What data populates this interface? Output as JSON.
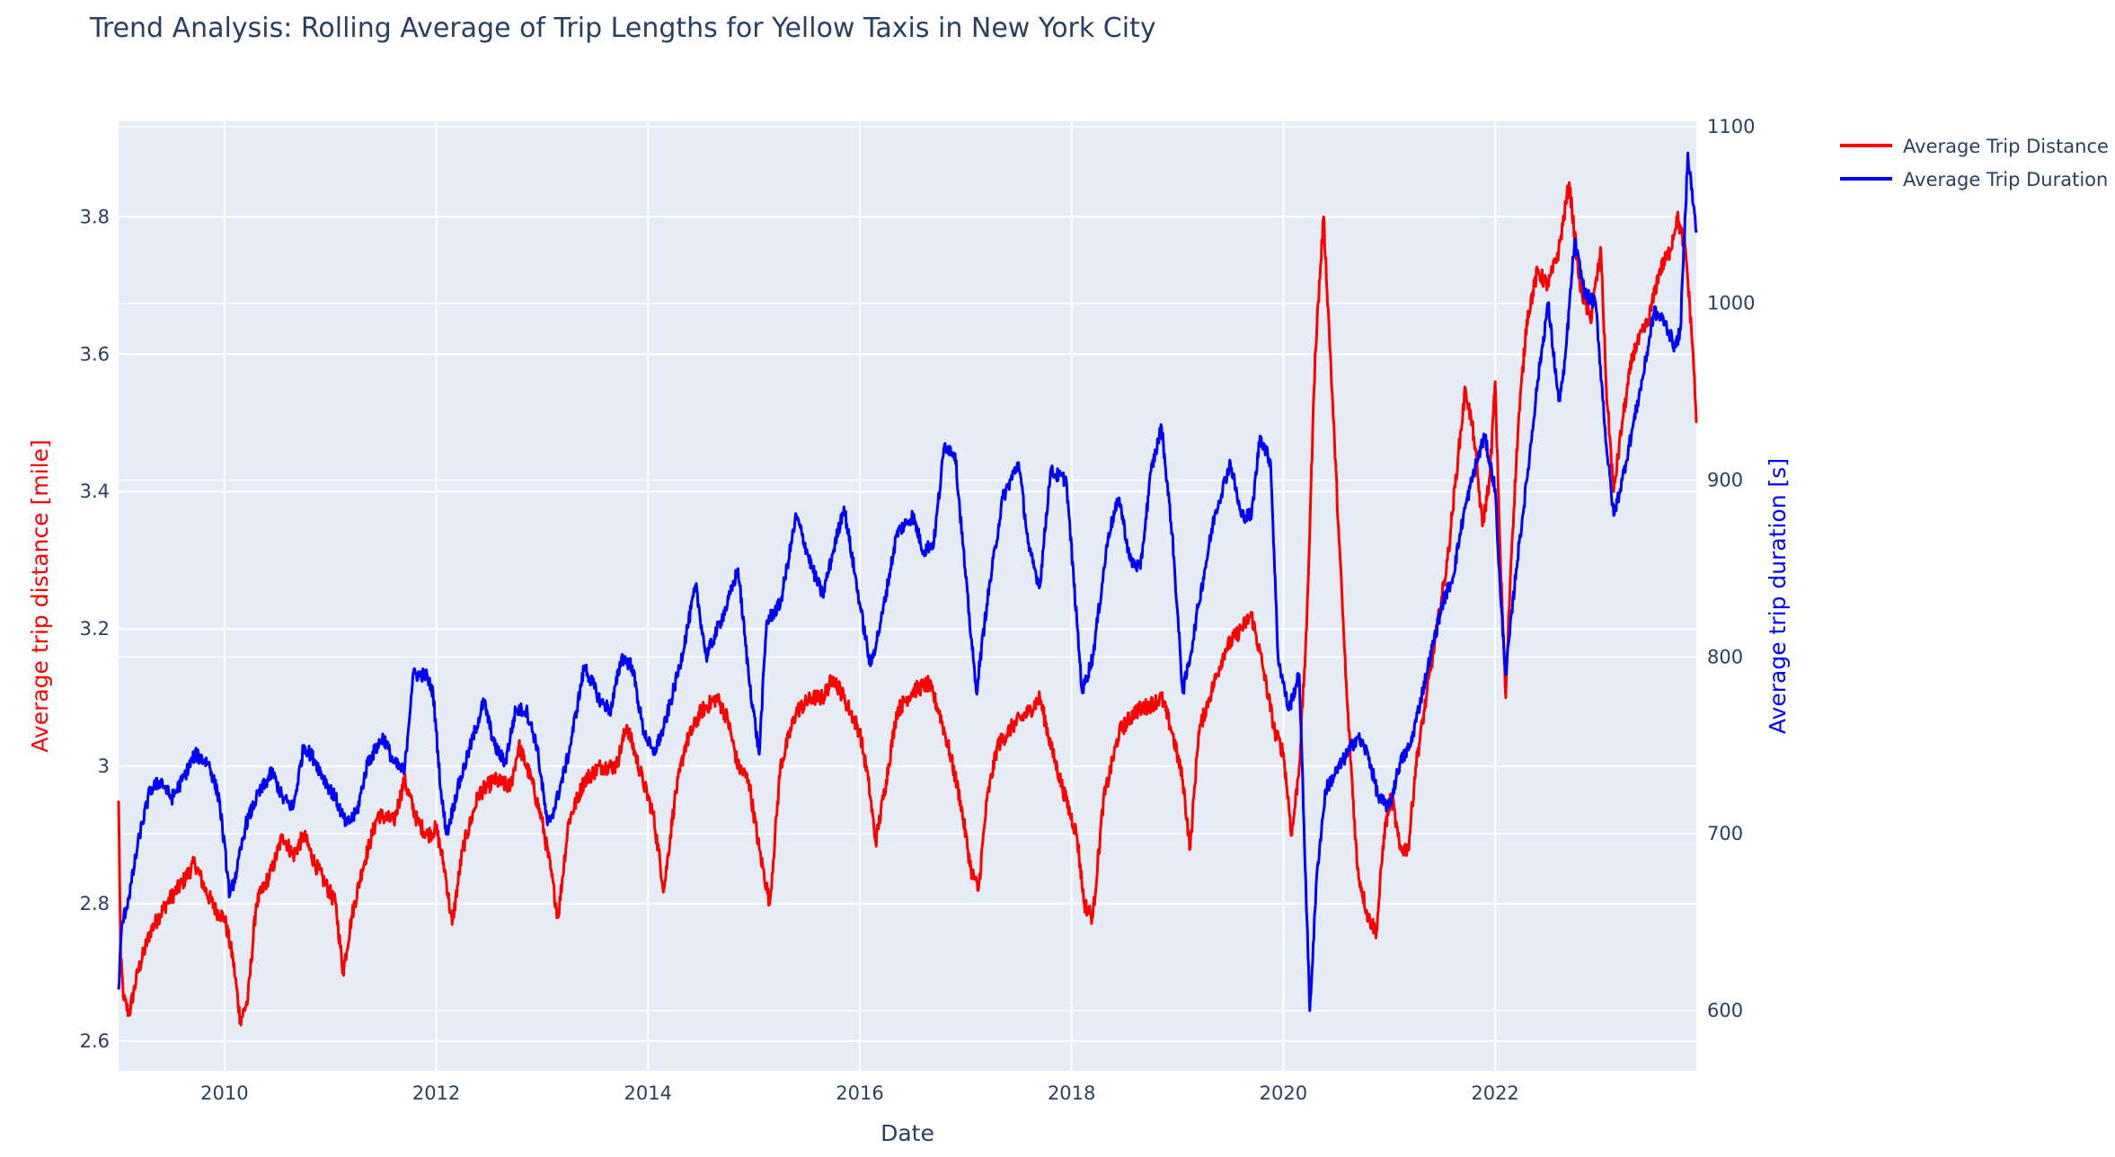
{
  "chart_data": {
    "type": "line",
    "title": "Trend Analysis: Rolling Average of Trip Lengths for Yellow Taxis in New York City",
    "xlabel": "Date",
    "ylabel": "Average trip distance [mile]",
    "y2label": "Average trip duration [s]",
    "xlim": [
      2009.0,
      2023.9
    ],
    "ylim": [
      2.557,
      3.939
    ],
    "y2lim": [
      566,
      1103
    ],
    "x_ticks": [
      "2010",
      "2012",
      "2014",
      "2016",
      "2018",
      "2020",
      "2022"
    ],
    "y_ticks": [
      "2.6",
      "2.8",
      "3",
      "3.2",
      "3.4",
      "3.6",
      "3.8"
    ],
    "y2_ticks": [
      "600",
      "700",
      "800",
      "900",
      "1000",
      "1100"
    ],
    "grid": true,
    "legend": "top-right",
    "colors": {
      "distance": "#ff0000",
      "duration": "#0000ff",
      "plot_bg": "#e5ecf6",
      "grid": "#ffffff"
    },
    "series": [
      {
        "name": "Average Trip Distance",
        "axis": "left",
        "x": [
          2009.0,
          2009.02,
          2009.05,
          2009.1,
          2009.18,
          2009.3,
          2009.45,
          2009.6,
          2009.72,
          2009.82,
          2009.92,
          2010.0,
          2010.08,
          2010.15,
          2010.22,
          2010.3,
          2010.45,
          2010.55,
          2010.65,
          2010.75,
          2010.85,
          2010.95,
          2011.05,
          2011.12,
          2011.2,
          2011.3,
          2011.45,
          2011.6,
          2011.7,
          2011.82,
          2011.92,
          2012.0,
          2012.08,
          2012.15,
          2012.25,
          2012.4,
          2012.55,
          2012.7,
          2012.78,
          2012.9,
          2013.0,
          2013.08,
          2013.15,
          2013.25,
          2013.4,
          2013.55,
          2013.7,
          2013.8,
          2013.95,
          2014.05,
          2014.15,
          2014.25,
          2014.35,
          2014.5,
          2014.65,
          2014.75,
          2014.85,
          2014.95,
          2015.05,
          2015.15,
          2015.25,
          2015.4,
          2015.55,
          2015.65,
          2015.75,
          2015.85,
          2016.0,
          2016.08,
          2016.15,
          2016.25,
          2016.35,
          2016.5,
          2016.65,
          2016.75,
          2016.85,
          2016.95,
          2017.05,
          2017.12,
          2017.2,
          2017.3,
          2017.45,
          2017.6,
          2017.7,
          2017.82,
          2017.95,
          2018.05,
          2018.12,
          2018.2,
          2018.3,
          2018.45,
          2018.6,
          2018.75,
          2018.85,
          2018.95,
          2019.05,
          2019.12,
          2019.2,
          2019.3,
          2019.45,
          2019.6,
          2019.7,
          2019.8,
          2019.92,
          2020.0,
          2020.08,
          2020.15,
          2020.22,
          2020.3,
          2020.38,
          2020.45,
          2020.52,
          2020.6,
          2020.7,
          2020.8,
          2020.88,
          2020.95,
          2021.02,
          2021.1,
          2021.18,
          2021.25,
          2021.35,
          2021.45,
          2021.55,
          2021.65,
          2021.72,
          2021.8,
          2021.88,
          2021.95,
          2022.0,
          2022.05,
          2022.1,
          2022.15,
          2022.22,
          2022.3,
          2022.4,
          2022.5,
          2022.6,
          2022.7,
          2022.8,
          2022.9,
          2023.0,
          2023.05,
          2023.12,
          2023.2,
          2023.3,
          2023.45,
          2023.55,
          2023.65,
          2023.72,
          2023.8,
          2023.87,
          2023.9
        ],
        "y": [
          2.95,
          2.72,
          2.66,
          2.64,
          2.7,
          2.76,
          2.8,
          2.83,
          2.86,
          2.82,
          2.79,
          2.78,
          2.72,
          2.63,
          2.66,
          2.8,
          2.85,
          2.9,
          2.87,
          2.9,
          2.86,
          2.83,
          2.8,
          2.7,
          2.78,
          2.85,
          2.93,
          2.92,
          2.98,
          2.92,
          2.9,
          2.91,
          2.85,
          2.77,
          2.88,
          2.96,
          2.98,
          2.97,
          3.03,
          2.98,
          2.92,
          2.85,
          2.78,
          2.92,
          2.98,
          3.0,
          3.0,
          3.06,
          2.98,
          2.93,
          2.82,
          2.95,
          3.03,
          3.08,
          3.1,
          3.07,
          3.0,
          2.98,
          2.88,
          2.8,
          3.0,
          3.08,
          3.1,
          3.1,
          3.13,
          3.1,
          3.05,
          2.98,
          2.89,
          2.98,
          3.08,
          3.11,
          3.12,
          3.08,
          3.02,
          2.95,
          2.85,
          2.82,
          2.95,
          3.03,
          3.06,
          3.08,
          3.1,
          3.02,
          2.95,
          2.9,
          2.8,
          2.78,
          2.95,
          3.05,
          3.08,
          3.09,
          3.1,
          3.05,
          2.98,
          2.88,
          3.05,
          3.1,
          3.17,
          3.2,
          3.22,
          3.15,
          3.05,
          3.02,
          2.9,
          3.0,
          3.2,
          3.6,
          3.8,
          3.58,
          3.35,
          3.1,
          2.85,
          2.78,
          2.76,
          2.9,
          2.96,
          2.88,
          2.88,
          3.0,
          3.1,
          3.2,
          3.3,
          3.45,
          3.55,
          3.48,
          3.35,
          3.42,
          3.56,
          3.3,
          3.1,
          3.3,
          3.5,
          3.65,
          3.72,
          3.7,
          3.75,
          3.85,
          3.7,
          3.65,
          3.75,
          3.55,
          3.4,
          3.5,
          3.6,
          3.65,
          3.72,
          3.75,
          3.8,
          3.75,
          3.6,
          3.5
        ]
      },
      {
        "name": "Average Trip Duration",
        "axis": "right",
        "x": [
          2009.0,
          2009.03,
          2009.1,
          2009.2,
          2009.3,
          2009.4,
          2009.5,
          2009.6,
          2009.72,
          2009.85,
          2009.95,
          2010.05,
          2010.12,
          2010.2,
          2010.3,
          2010.45,
          2010.55,
          2010.65,
          2010.75,
          2010.85,
          2010.95,
          2011.05,
          2011.15,
          2011.25,
          2011.35,
          2011.5,
          2011.6,
          2011.7,
          2011.78,
          2011.9,
          2011.97,
          2012.05,
          2012.1,
          2012.2,
          2012.3,
          2012.45,
          2012.55,
          2012.65,
          2012.75,
          2012.85,
          2012.95,
          2013.05,
          2013.12,
          2013.25,
          2013.4,
          2013.55,
          2013.65,
          2013.75,
          2013.85,
          2013.95,
          2014.05,
          2014.15,
          2014.3,
          2014.45,
          2014.55,
          2014.65,
          2014.75,
          2014.85,
          2014.95,
          2015.05,
          2015.12,
          2015.25,
          2015.4,
          2015.55,
          2015.65,
          2015.75,
          2015.85,
          2016.0,
          2016.1,
          2016.2,
          2016.35,
          2016.5,
          2016.6,
          2016.7,
          2016.8,
          2016.9,
          2017.0,
          2017.1,
          2017.2,
          2017.35,
          2017.5,
          2017.6,
          2017.7,
          2017.8,
          2017.95,
          2018.05,
          2018.1,
          2018.2,
          2018.35,
          2018.45,
          2018.55,
          2018.65,
          2018.75,
          2018.85,
          2018.95,
          2019.05,
          2019.12,
          2019.2,
          2019.35,
          2019.5,
          2019.6,
          2019.7,
          2019.78,
          2019.88,
          2019.95,
          2020.05,
          2020.15,
          2020.25,
          2020.32,
          2020.4,
          2020.5,
          2020.6,
          2020.7,
          2020.8,
          2020.9,
          2021.0,
          2021.1,
          2021.2,
          2021.35,
          2021.5,
          2021.6,
          2021.7,
          2021.8,
          2021.9,
          2022.0,
          2022.05,
          2022.1,
          2022.2,
          2022.3,
          2022.4,
          2022.5,
          2022.6,
          2022.65,
          2022.75,
          2022.85,
          2022.95,
          2023.05,
          2023.12,
          2023.2,
          2023.3,
          2023.4,
          2023.5,
          2023.6,
          2023.7,
          2023.75,
          2023.82,
          2023.9
        ],
        "y": [
          612,
          648,
          665,
          700,
          725,
          730,
          720,
          730,
          745,
          740,
          720,
          665,
          680,
          705,
          720,
          735,
          720,
          715,
          750,
          742,
          730,
          720,
          705,
          712,
          740,
          755,
          740,
          735,
          790,
          790,
          780,
          720,
          700,
          725,
          745,
          775,
          750,
          740,
          770,
          770,
          750,
          705,
          715,
          745,
          795,
          775,
          770,
          800,
          795,
          760,
          745,
          760,
          795,
          840,
          800,
          815,
          830,
          850,
          790,
          745,
          820,
          830,
          880,
          850,
          835,
          860,
          885,
          830,
          795,
          820,
          870,
          880,
          860,
          865,
          920,
          915,
          845,
          780,
          830,
          890,
          910,
          860,
          840,
          905,
          900,
          820,
          780,
          800,
          870,
          890,
          855,
          850,
          905,
          930,
          870,
          780,
          800,
          830,
          880,
          910,
          880,
          880,
          925,
          910,
          800,
          770,
          790,
          600,
          680,
          725,
          735,
          745,
          755,
          745,
          720,
          715,
          740,
          750,
          790,
          830,
          845,
          880,
          905,
          925,
          895,
          835,
          790,
          850,
          900,
          955,
          1000,
          945,
          960,
          1035,
          1005,
          1000,
          920,
          880,
          900,
          930,
          960,
          995,
          990,
          975,
          985,
          1085,
          1040
        ],
        "min_point": {
          "x": 2020.35,
          "y": 598
        }
      }
    ]
  }
}
